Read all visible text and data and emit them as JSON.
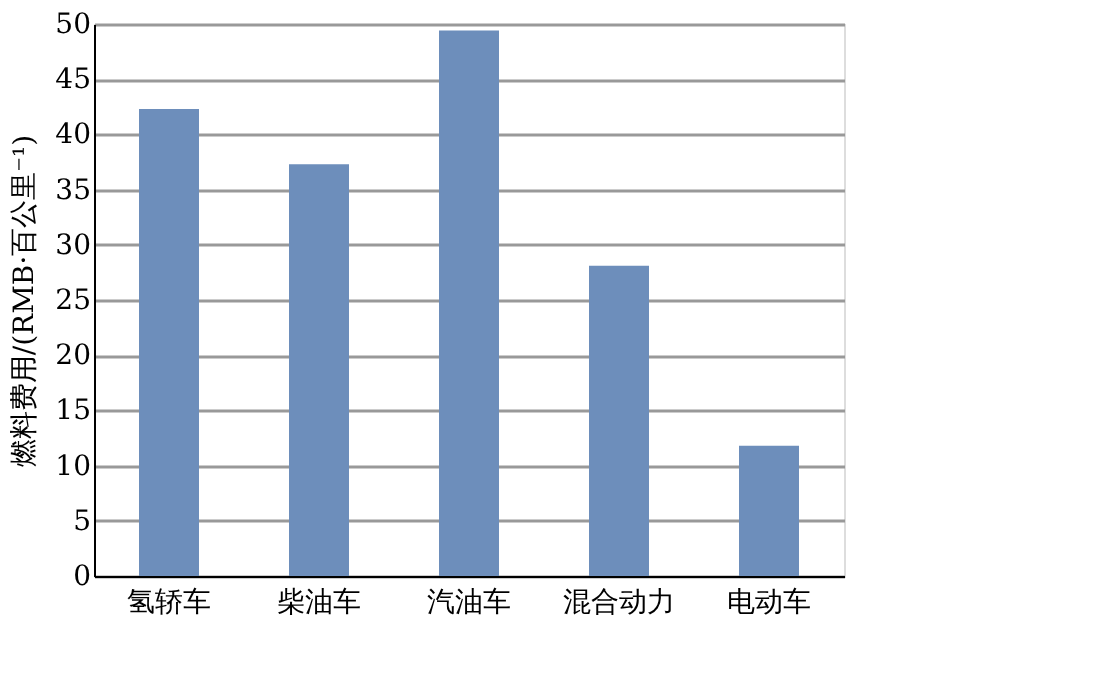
{
  "chart_data": {
    "type": "bar",
    "ylabel": "燃料费用/(RMB·百公里⁻¹)",
    "categories": [
      "氢轿车",
      "柴油车",
      "汽油车",
      "混合动力",
      "电动车"
    ],
    "values": [
      42.3,
      37.3,
      49.4,
      28.1,
      11.8
    ],
    "color": "#6d8ebb",
    "ylim": [
      0,
      50
    ],
    "yticks": [
      0,
      5,
      10,
      15,
      20,
      25,
      30,
      35,
      40,
      45,
      50
    ],
    "grid": "y"
  }
}
